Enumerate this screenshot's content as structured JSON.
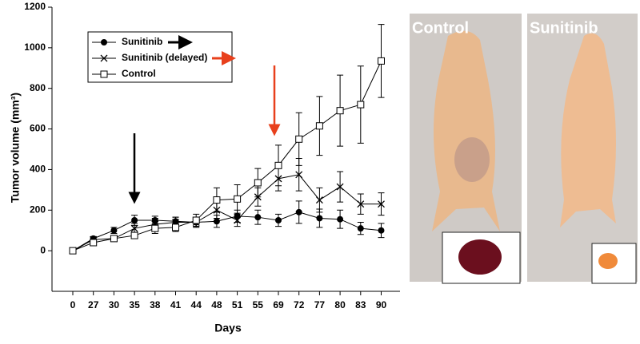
{
  "chart_data": {
    "type": "line",
    "y_label": "Tumor volume (mm³)",
    "x_label": "Days",
    "categories": [
      "0",
      "27",
      "30",
      "35",
      "38",
      "41",
      "44",
      "48",
      "51",
      "55",
      "69",
      "72",
      "77",
      "80",
      "83",
      "90"
    ],
    "ylim": [
      -200,
      1200
    ],
    "yticks": [
      0,
      200,
      400,
      600,
      800,
      1000,
      1200
    ],
    "series": [
      {
        "name": "Sunitinib",
        "color": "#000000",
        "marker": "circle",
        "values": [
          0,
          60,
          100,
          150,
          150,
          145,
          140,
          145,
          170,
          165,
          150,
          190,
          160,
          155,
          110,
          100
        ],
        "errors": [
          0,
          10,
          15,
          25,
          20,
          20,
          20,
          30,
          30,
          35,
          30,
          55,
          45,
          45,
          30,
          35
        ]
      },
      {
        "name": "Sunitinib (delayed)",
        "color": "#000000",
        "marker": "x",
        "values": [
          0,
          55,
          60,
          110,
          130,
          140,
          140,
          200,
          150,
          265,
          355,
          375,
          250,
          315,
          230,
          230
        ],
        "errors": [
          0,
          10,
          10,
          25,
          30,
          25,
          25,
          40,
          30,
          45,
          60,
          80,
          60,
          75,
          50,
          55
        ]
      },
      {
        "name": "Control",
        "color": "#000000",
        "marker": "square",
        "values": [
          0,
          40,
          60,
          75,
          110,
          115,
          150,
          250,
          255,
          335,
          420,
          550,
          615,
          690,
          720,
          935
        ],
        "errors": [
          0,
          10,
          10,
          15,
          25,
          20,
          30,
          60,
          70,
          70,
          100,
          130,
          145,
          175,
          190,
          180
        ]
      }
    ]
  },
  "images": [
    {
      "label": "Control"
    },
    {
      "label": "Sunitinib"
    }
  ]
}
